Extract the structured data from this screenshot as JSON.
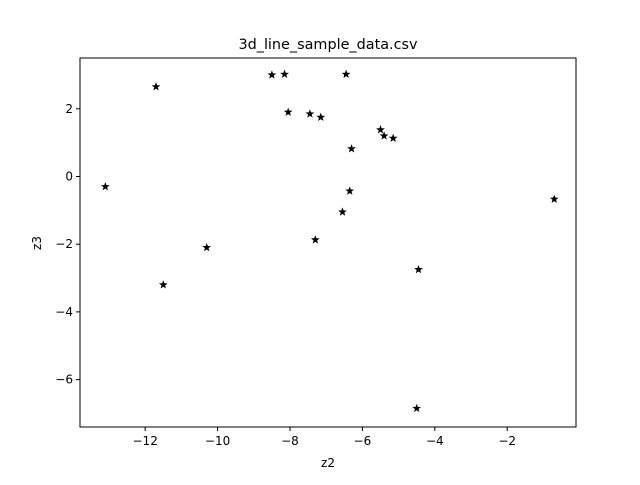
{
  "chart_data": {
    "type": "scatter",
    "title": "3d_line_sample_data.csv",
    "xlabel": "z2",
    "ylabel": "z3",
    "xlim": [
      -13.8,
      -0.1
    ],
    "ylim": [
      -7.4,
      3.5
    ],
    "xticks": [
      -12,
      -10,
      -8,
      -6,
      -4,
      -2
    ],
    "yticks": [
      -6,
      -4,
      -2,
      0,
      2
    ],
    "xtick_labels": [
      "−12",
      "−10",
      "−8",
      "−6",
      "−4",
      "−2"
    ],
    "ytick_labels": [
      "−6",
      "−4",
      "−2",
      "0",
      "2"
    ],
    "grid": false,
    "marker": "star",
    "color": "#000000",
    "series": [
      {
        "points": [
          {
            "x": -13.1,
            "y": -0.3
          },
          {
            "x": -11.7,
            "y": 2.65
          },
          {
            "x": -11.5,
            "y": -3.2
          },
          {
            "x": -10.3,
            "y": -2.1
          },
          {
            "x": -8.5,
            "y": 3.0
          },
          {
            "x": -8.15,
            "y": 3.02
          },
          {
            "x": -8.05,
            "y": 1.9
          },
          {
            "x": -7.45,
            "y": 1.85
          },
          {
            "x": -7.15,
            "y": 1.75
          },
          {
            "x": -7.3,
            "y": -1.87
          },
          {
            "x": -6.55,
            "y": -1.05
          },
          {
            "x": -6.45,
            "y": 3.02
          },
          {
            "x": -6.35,
            "y": -0.43
          },
          {
            "x": -6.3,
            "y": 0.82
          },
          {
            "x": -5.5,
            "y": 1.38
          },
          {
            "x": -5.4,
            "y": 1.2
          },
          {
            "x": -5.15,
            "y": 1.13
          },
          {
            "x": -4.45,
            "y": -2.75
          },
          {
            "x": -4.5,
            "y": -6.85
          },
          {
            "x": -0.7,
            "y": -0.67
          }
        ]
      }
    ]
  }
}
